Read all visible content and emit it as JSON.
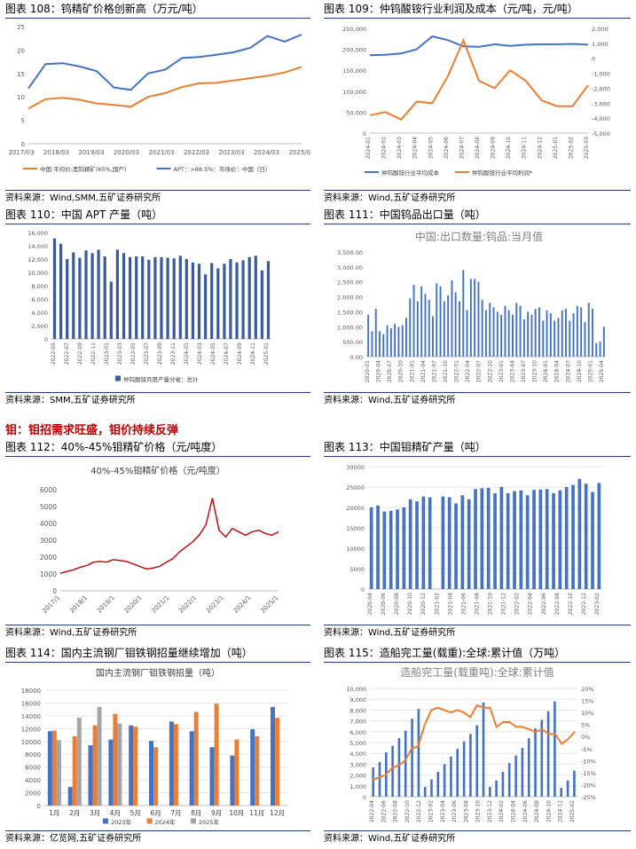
{
  "section_heading": "钼：钼招需求旺盛，钼价持续反弹",
  "panels": [
    {
      "title": "图表 108：钨精矿价格创新高（万元/吨）",
      "source": "资料来源：Wind,SMM,五矿证券研究所"
    },
    {
      "title": "图表 109：仲钨酸铵行业利润及成本（元/吨，元/吨）",
      "source": "资料来源：Wind,五矿证券研究所"
    },
    {
      "title": "图表 110：中国 APT 产量（吨）",
      "source": "资料来源：SMM,五矿证券研究所"
    },
    {
      "title": "图表 111：中国钨品出口量（吨）",
      "source": "资料来源：Wind,五矿证券研究所"
    },
    {
      "title": "图表 112：40%-45%钼精矿价格（元/吨度）",
      "source": "资料来源：Wind,五矿证券研究所"
    },
    {
      "title": "图表 113：中国钼精矿产量（吨）",
      "source": "资料来源：Wind,五矿证券研究所"
    },
    {
      "title": "图表 114：国内主流钢厂钼铁钢招量继续增加（吨）",
      "source": "资料来源：亿览网,五矿证券研究所"
    },
    {
      "title": "图表 115：造船完工量(载重):全球:累计值（万吨）",
      "source": "资料来源：Wind,五矿证券研究所"
    }
  ],
  "colors": {
    "blue": "#4472c4",
    "orange": "#ed7d31",
    "red": "#c00000",
    "gray": "#a5a5a5",
    "rule": "#1f3f78"
  },
  "chart_data": [
    {
      "type": "line",
      "title": "",
      "ylim": [
        0,
        25
      ],
      "yticks": [
        0,
        5,
        10,
        15,
        20,
        25
      ],
      "x_ticks": [
        "2017/03",
        "2018/03",
        "2019/03",
        "2020/03",
        "2021/03",
        "2022/03",
        "2023/03",
        "2024/03",
        "2025/03"
      ],
      "series": [
        {
          "name": "中国:平均价:黑钨精矿(65%,国产)",
          "color": "#ed7d31",
          "values": [
            7.5,
            9.5,
            9.8,
            9.4,
            8.6,
            8.3,
            7.9,
            10.0,
            10.8,
            12.1,
            12.9,
            13.0,
            13.5,
            14.0,
            14.5,
            15.2,
            16.4
          ]
        },
        {
          "name": "APT：>88.5%：市场价：中国（日）",
          "color": "#4472c4",
          "values": [
            11.8,
            17.0,
            17.2,
            16.5,
            15.5,
            12.0,
            11.5,
            15.0,
            15.8,
            18.3,
            18.5,
            19.0,
            19.5,
            20.5,
            23.0,
            21.8,
            23.3
          ]
        }
      ]
    },
    {
      "type": "line",
      "title": "",
      "ylim": [
        0,
        250000
      ],
      "y2lim": [
        -5000,
        2000
      ],
      "yticks": [
        "0",
        "50,000",
        "100,000",
        "150,000",
        "200,000",
        "250,000"
      ],
      "y2ticks": [
        "2,000",
        "1,000",
        "0",
        "-1,000",
        "-2,000",
        "-3,000",
        "-4,000",
        "-5,000"
      ],
      "x_ticks": [
        "2024-01",
        "2024-03",
        "2024-05",
        "2024-07",
        "2024-09",
        "2024-11",
        "2025-01",
        "2025-03",
        "2024-02",
        "2024-04",
        "2024-06",
        "2024-08",
        "2024-10",
        "2024-12",
        "2025-02"
      ],
      "x_labels": [
        "2024-01",
        "2024-02",
        "2024-03",
        "2024-04",
        "2024-05",
        "2024-06",
        "2024-07",
        "2024-08",
        "2024-09",
        "2024-10",
        "2024-11",
        "2024-12",
        "2025-01",
        "2025-02",
        "2025-03"
      ],
      "series": [
        {
          "name": "仲钨酸铵行业平均成本",
          "axis": "left",
          "color": "#4472c4",
          "values": [
            186000,
            187000,
            190000,
            200000,
            231000,
            222000,
            207000,
            206000,
            212000,
            208000,
            211000,
            212000,
            212000,
            213000,
            211000
          ]
        },
        {
          "name": "仲钨酸铵行业平均利润*",
          "axis": "right",
          "color": "#ed7d31",
          "values": [
            -3800,
            -3600,
            -4100,
            -2900,
            -3000,
            -1200,
            1200,
            -1500,
            -2000,
            -800,
            -1500,
            -2800,
            -3200,
            -3200,
            -1800
          ]
        }
      ]
    },
    {
      "type": "bar",
      "title": "",
      "ylim": [
        0,
        16000
      ],
      "yticks": [
        "0",
        "2,000",
        "4,000",
        "6,000",
        "8,000",
        "10,000",
        "12,000",
        "14,000",
        "16,000"
      ],
      "x_ticks": [
        "2022-05",
        "2022-07",
        "2022-09",
        "2022-11",
        "2023-01",
        "2023-03",
        "2023-05",
        "2023-07",
        "2023-09",
        "2023-11",
        "2024-01",
        "2024-03",
        "2024-05",
        "2024-07",
        "2024-09",
        "2024-11",
        "2025-01"
      ],
      "series": [
        {
          "name": "仲钨酸铵月度产量分省：总计",
          "color": "#3a5aa0",
          "values": [
            15100,
            14300,
            12000,
            13000,
            12200,
            13300,
            12900,
            13400,
            12400,
            8600,
            13400,
            12900,
            12300,
            12400,
            12400,
            11900,
            12300,
            12300,
            12200,
            12100,
            12500,
            12000,
            11500,
            11300,
            9700,
            11400,
            10600,
            11300,
            12000,
            11500,
            11800,
            12300,
            12500,
            10300,
            11700
          ]
        }
      ]
    },
    {
      "type": "bar",
      "title": "中国:出口数量:钨品:当月值",
      "ylim": [
        0,
        3500
      ],
      "yticks": [
        "0.00",
        "500.00",
        "1,000.00",
        "1,500.00",
        "2,000.00",
        "2,500.00",
        "3,000.00",
        "3,500.00"
      ],
      "x_ticks": [
        "2020-01",
        "2020-04",
        "2020-07",
        "2020-10",
        "2021-01",
        "2021-04",
        "2021-07",
        "2021-10",
        "2022-01",
        "2022-04",
        "2022-07",
        "2022-10",
        "2023-01",
        "2023-04",
        "2023-07",
        "2023-10",
        "2024-01",
        "2024-04",
        "2024-07",
        "2024-10",
        "2025-01",
        "2025-04"
      ],
      "series": [
        {
          "name": "钨品出口量",
          "color": "#4472c4",
          "values": [
            1400,
            850,
            1600,
            850,
            750,
            1050,
            950,
            1100,
            1000,
            1050,
            1300,
            1950,
            2400,
            1850,
            2350,
            2100,
            1900,
            1350,
            2450,
            2350,
            1850,
            2050,
            2550,
            2150,
            1850,
            2900,
            1550,
            2600,
            2600,
            2500,
            1900,
            1550,
            1800,
            1650,
            1500,
            1400,
            1700,
            1550,
            1400,
            1800,
            1700,
            1250,
            1500,
            1400,
            1600,
            1650,
            1200,
            1550,
            1450,
            1200,
            1300,
            1550,
            1600,
            1200,
            1450,
            1700,
            1650,
            1150,
            1800,
            1600,
            450,
            500,
            1000
          ]
        }
      ]
    },
    {
      "type": "line",
      "title": "40%-45%钼精矿价格（元/吨度）",
      "ylim": [
        0,
        6000
      ],
      "yticks": [
        "0",
        "1000",
        "2000",
        "3000",
        "4000",
        "5000",
        "6000"
      ],
      "x_ticks": [
        "2017/1",
        "2018/1",
        "2019/1",
        "2020/1",
        "2021/1",
        "2022/1",
        "2023/1",
        "2024/1",
        "2025/1"
      ],
      "series": [
        {
          "name": "钼精矿价格",
          "color": "#c00000",
          "values": [
            1050,
            1150,
            1250,
            1400,
            1500,
            1700,
            1750,
            1700,
            1850,
            1800,
            1750,
            1600,
            1450,
            1300,
            1350,
            1450,
            1700,
            1900,
            2300,
            2600,
            2900,
            3300,
            3900,
            5500,
            3600,
            3200,
            3700,
            3500,
            3300,
            3500,
            3600,
            3400,
            3300,
            3500
          ]
        }
      ]
    },
    {
      "type": "bar",
      "title": "",
      "ylim": [
        0,
        30000
      ],
      "yticks": [
        "0",
        "5000",
        "10000",
        "15000",
        "20000",
        "25000",
        "30000"
      ],
      "x_ticks": [
        "2020-04",
        "2020-06",
        "2020-08",
        "2020-10",
        "2020-12",
        "2021-02",
        "2021-04",
        "2021-06",
        "2021-08",
        "2021-10",
        "2021-12",
        "2022-02",
        "2022-04",
        "2022-06",
        "2022-08",
        "2022-10",
        "2022-12",
        "2023-02"
      ],
      "series": [
        {
          "name": "钼精矿产量",
          "color": "#4472c4",
          "values": [
            20000,
            20500,
            19000,
            19200,
            19500,
            20000,
            22000,
            21500,
            22700,
            22500,
            0,
            22700,
            22500,
            21000,
            23000,
            22000,
            24500,
            24700,
            24800,
            23500,
            25000,
            23500,
            24000,
            24200,
            23000,
            24300,
            24400,
            24500,
            23500,
            24200,
            25000,
            25500,
            27000,
            25800,
            23800,
            26000
          ]
        }
      ]
    },
    {
      "type": "bar",
      "title": "国内主流钢厂钼铁钢招量（吨）",
      "ylim": [
        0,
        18000
      ],
      "yticks": [
        "0",
        "2000",
        "4000",
        "6000",
        "8000",
        "10000",
        "12000",
        "14000",
        "16000",
        "18000"
      ],
      "categories": [
        "1月",
        "2月",
        "3月",
        "4月",
        "5月",
        "6月",
        "7月",
        "8月",
        "9月",
        "10月",
        "11月",
        "12月"
      ],
      "series": [
        {
          "name": "2023年",
          "color": "#4472c4",
          "values": [
            11600,
            2900,
            9400,
            10300,
            12500,
            10100,
            13100,
            11600,
            9100,
            7800,
            11900,
            15400
          ]
        },
        {
          "name": "2024年",
          "color": "#ed7d31",
          "values": [
            11700,
            10800,
            12500,
            14300,
            12300,
            9100,
            12700,
            14600,
            15900,
            10300,
            10800,
            13700
          ]
        },
        {
          "name": "2025年",
          "color": "#a5a5a5",
          "values": [
            10200,
            13700,
            15400,
            12800,
            null,
            null,
            null,
            null,
            null,
            null,
            null,
            null
          ]
        }
      ]
    },
    {
      "type": "bar",
      "title": "造船完工量(载重吨):全球:累计值",
      "ylim": [
        0,
        10000
      ],
      "y2lim": [
        -25,
        20
      ],
      "yticks": [
        "0",
        "1,000",
        "2,000",
        "3,000",
        "4,000",
        "5,000",
        "6,000",
        "7,000",
        "8,000",
        "9,000",
        "10,000"
      ],
      "y2ticks": [
        "20%",
        "15%",
        "10%",
        "5%",
        "0%",
        "-5%",
        "-10%",
        "-15%",
        "-20%",
        "-25%"
      ],
      "x_ticks": [
        "2022-04",
        "2022-06",
        "2022-08",
        "2022-10",
        "2022-12",
        "2023-02",
        "2023-04",
        "2023-06",
        "2023-08",
        "2023-10",
        "2023-12",
        "2024-02",
        "2024-04",
        "2024-06",
        "2024-08",
        "2024-10",
        "2024-12",
        "2025-02"
      ],
      "series": [
        {
          "name": "累计值",
          "color": "#4472c4",
          "values": [
            2700,
            3200,
            4100,
            4700,
            5400,
            6100,
            7200,
            8100,
            900,
            1600,
            2300,
            3000,
            3700,
            4400,
            5100,
            5800,
            6600,
            8700,
            900,
            1500,
            2300,
            3100,
            3800,
            4500,
            5400,
            6300,
            7100,
            7900,
            8800,
            800,
            1500,
            2400
          ]
        },
        {
          "name": "同比",
          "color": "#ed7d31",
          "axis": "right",
          "values": [
            -18,
            -17,
            -16,
            -13,
            -12,
            -10,
            -5,
            -4,
            5,
            11,
            12,
            11,
            10,
            11,
            10,
            8,
            13,
            12,
            12,
            4,
            6,
            6,
            4,
            4,
            3,
            2,
            3,
            1,
            1,
            -3,
            -1,
            2
          ]
        }
      ]
    }
  ]
}
